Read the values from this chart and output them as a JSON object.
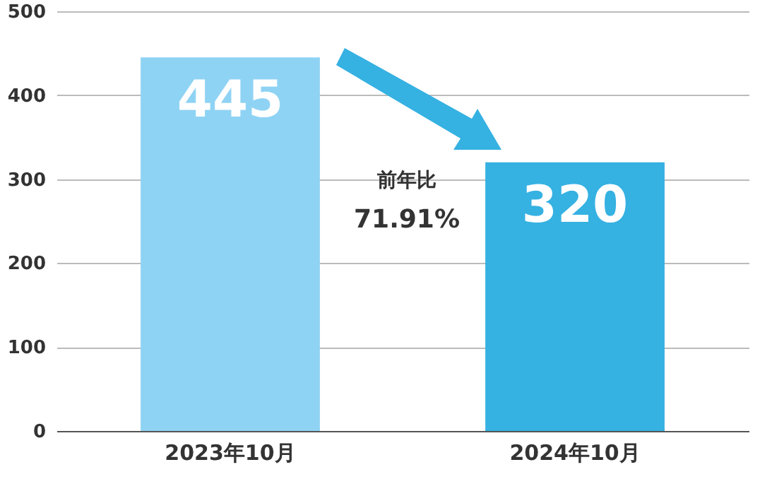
{
  "chart_data": {
    "type": "bar",
    "categories": [
      "2023年10月",
      "2024年10月"
    ],
    "values": [
      445,
      320
    ],
    "colors": [
      "#8fd3f4",
      "#35b1e2"
    ],
    "ylim": [
      0,
      500
    ],
    "yticks": [
      0,
      100,
      200,
      300,
      400,
      500
    ],
    "grid": "y",
    "data_labels": true,
    "annotations": [
      "前年比",
      "71.91%"
    ]
  }
}
